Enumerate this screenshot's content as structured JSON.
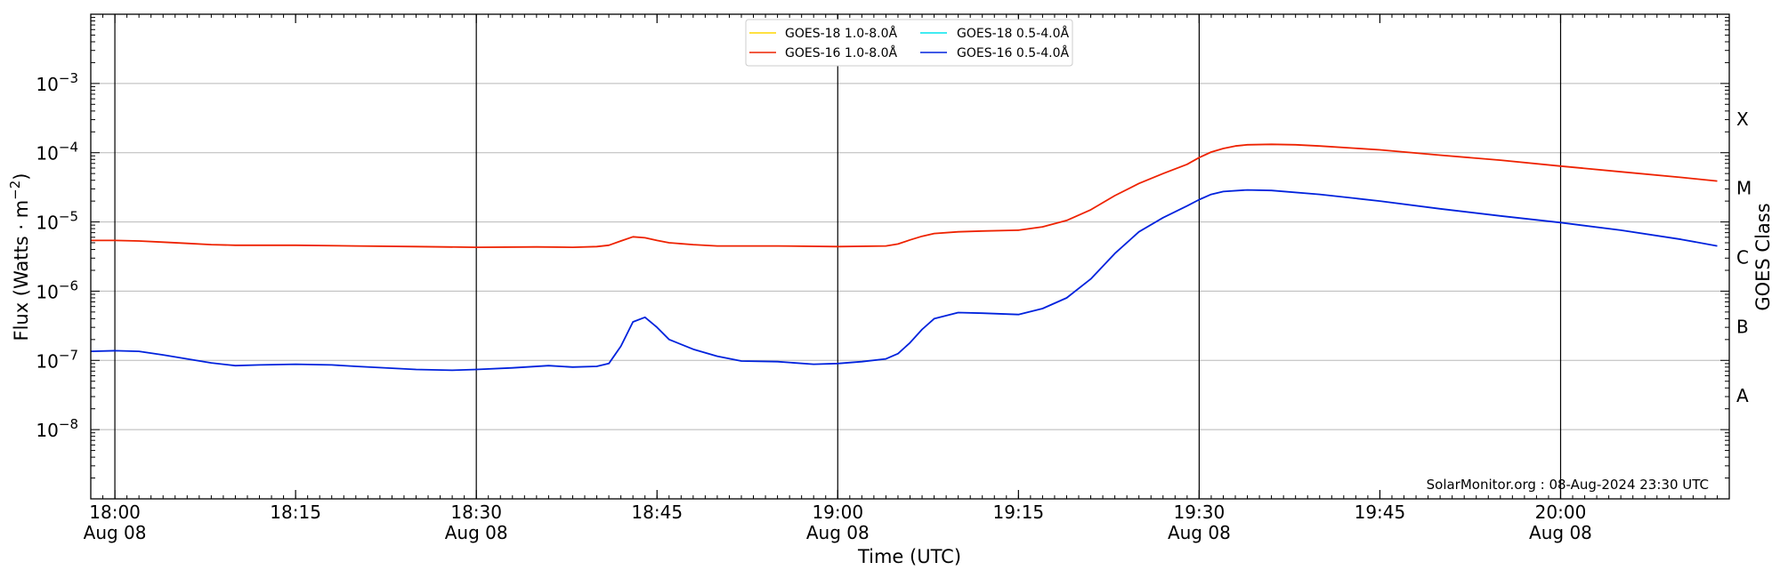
{
  "chart_data": {
    "type": "line",
    "xlabel": "Time (UTC)",
    "ylabel_main": "Flux (Watts · m",
    "ylabel_sup": "−2",
    "ylabel_end": ")",
    "ylabel_right": "GOES Class",
    "credit": "SolarMonitor.org : 08-Aug-2024 23:30 UTC",
    "x_range": [
      "17:58",
      "20:14"
    ],
    "y_log_range": [
      -9,
      -2
    ],
    "log_scale_y": true,
    "grid": "horizontal at decades",
    "legend_placement": "top-center",
    "x_ticks": [
      {
        "t": "18:00",
        "line1": "18:00",
        "line2": "Aug 08"
      },
      {
        "t": "18:15",
        "line1": "18:15",
        "line2": ""
      },
      {
        "t": "18:30",
        "line1": "18:30",
        "line2": "Aug 08"
      },
      {
        "t": "18:45",
        "line1": "18:45",
        "line2": ""
      },
      {
        "t": "19:00",
        "line1": "19:00",
        "line2": "Aug 08"
      },
      {
        "t": "19:15",
        "line1": "19:15",
        "line2": ""
      },
      {
        "t": "19:30",
        "line1": "19:30",
        "line2": "Aug 08"
      },
      {
        "t": "19:45",
        "line1": "19:45",
        "line2": ""
      },
      {
        "t": "20:00",
        "line1": "20:00",
        "line2": "Aug 08"
      }
    ],
    "vertical_lines_at": [
      "18:00",
      "18:30",
      "19:00",
      "19:30",
      "20:00"
    ],
    "y_ticks": [
      {
        "exp": -8,
        "base": "10",
        "sup": "−8"
      },
      {
        "exp": -7,
        "base": "10",
        "sup": "−7"
      },
      {
        "exp": -6,
        "base": "10",
        "sup": "−6"
      },
      {
        "exp": -5,
        "base": "10",
        "sup": "−5"
      },
      {
        "exp": -4,
        "base": "10",
        "sup": "−4"
      },
      {
        "exp": -3,
        "base": "10",
        "sup": "−3"
      }
    ],
    "goes_classes": [
      {
        "label": "A",
        "flux": 3.16e-08
      },
      {
        "label": "B",
        "flux": 3.16e-07
      },
      {
        "label": "C",
        "flux": 3.16e-06
      },
      {
        "label": "M",
        "flux": 3.16e-05
      },
      {
        "label": "X",
        "flux": 0.000316
      }
    ],
    "legend": [
      {
        "label": "GOES-18 1.0-8.0Å",
        "color": "#ffd700"
      },
      {
        "label": "GOES-18 0.5-4.0Å",
        "color": "#00e5ee"
      },
      {
        "label": "GOES-16 1.0-8.0Å",
        "color": "#ee2200"
      },
      {
        "label": "GOES-16 0.5-4.0Å",
        "color": "#0022dd"
      }
    ],
    "series": [
      {
        "name": "GOES-16 1.0-8.0Å",
        "color": "#ee2200",
        "points": [
          [
            "17:58",
            5.4e-06
          ],
          [
            "18:00",
            5.4e-06
          ],
          [
            "18:02",
            5.3e-06
          ],
          [
            "18:04",
            5.1e-06
          ],
          [
            "18:06",
            4.9e-06
          ],
          [
            "18:08",
            4.7e-06
          ],
          [
            "18:10",
            4.6e-06
          ],
          [
            "18:15",
            4.6e-06
          ],
          [
            "18:20",
            4.5e-06
          ],
          [
            "18:25",
            4.4e-06
          ],
          [
            "18:30",
            4.3e-06
          ],
          [
            "18:35",
            4.35e-06
          ],
          [
            "18:38",
            4.3e-06
          ],
          [
            "18:40",
            4.4e-06
          ],
          [
            "18:41",
            4.6e-06
          ],
          [
            "18:42",
            5.3e-06
          ],
          [
            "18:43",
            6.1e-06
          ],
          [
            "18:44",
            5.9e-06
          ],
          [
            "18:45",
            5.4e-06
          ],
          [
            "18:46",
            5e-06
          ],
          [
            "18:48",
            4.7e-06
          ],
          [
            "18:50",
            4.5e-06
          ],
          [
            "18:55",
            4.5e-06
          ],
          [
            "19:00",
            4.4e-06
          ],
          [
            "19:04",
            4.5e-06
          ],
          [
            "19:05",
            4.8e-06
          ],
          [
            "19:06",
            5.5e-06
          ],
          [
            "19:07",
            6.2e-06
          ],
          [
            "19:08",
            6.8e-06
          ],
          [
            "19:10",
            7.2e-06
          ],
          [
            "19:12",
            7.4e-06
          ],
          [
            "19:15",
            7.6e-06
          ],
          [
            "19:17",
            8.5e-06
          ],
          [
            "19:19",
            1.05e-05
          ],
          [
            "19:21",
            1.5e-05
          ],
          [
            "19:23",
            2.4e-05
          ],
          [
            "19:25",
            3.6e-05
          ],
          [
            "19:27",
            5e-05
          ],
          [
            "19:29",
            6.8e-05
          ],
          [
            "19:30",
            8.5e-05
          ],
          [
            "19:31",
            0.000102
          ],
          [
            "19:32",
            0.000115
          ],
          [
            "19:33",
            0.000125
          ],
          [
            "19:34",
            0.00013
          ],
          [
            "19:36",
            0.000132
          ],
          [
            "19:38",
            0.00013
          ],
          [
            "19:40",
            0.000125
          ],
          [
            "19:45",
            0.00011
          ],
          [
            "19:50",
            9.2e-05
          ],
          [
            "19:55",
            7.8e-05
          ],
          [
            "20:00",
            6.4e-05
          ],
          [
            "20:05",
            5.3e-05
          ],
          [
            "20:10",
            4.4e-05
          ],
          [
            "20:13",
            3.9e-05
          ]
        ]
      },
      {
        "name": "GOES-16 0.5-4.0Å",
        "color": "#0022dd",
        "points": [
          [
            "17:58",
            1.35e-07
          ],
          [
            "18:00",
            1.38e-07
          ],
          [
            "18:02",
            1.35e-07
          ],
          [
            "18:04",
            1.2e-07
          ],
          [
            "18:06",
            1.05e-07
          ],
          [
            "18:08",
            9.2e-08
          ],
          [
            "18:10",
            8.4e-08
          ],
          [
            "18:12",
            8.6e-08
          ],
          [
            "18:15",
            8.8e-08
          ],
          [
            "18:18",
            8.6e-08
          ],
          [
            "18:20",
            8.2e-08
          ],
          [
            "18:25",
            7.4e-08
          ],
          [
            "18:28",
            7.2e-08
          ],
          [
            "18:30",
            7.4e-08
          ],
          [
            "18:33",
            7.8e-08
          ],
          [
            "18:36",
            8.4e-08
          ],
          [
            "18:38",
            8e-08
          ],
          [
            "18:40",
            8.2e-08
          ],
          [
            "18:41",
            9e-08
          ],
          [
            "18:42",
            1.6e-07
          ],
          [
            "18:43",
            3.6e-07
          ],
          [
            "18:44",
            4.2e-07
          ],
          [
            "18:45",
            3e-07
          ],
          [
            "18:46",
            2e-07
          ],
          [
            "18:48",
            1.45e-07
          ],
          [
            "18:50",
            1.15e-07
          ],
          [
            "18:52",
            9.8e-08
          ],
          [
            "18:55",
            9.6e-08
          ],
          [
            "18:58",
            8.8e-08
          ],
          [
            "19:00",
            9e-08
          ],
          [
            "19:02",
            9.6e-08
          ],
          [
            "19:04",
            1.05e-07
          ],
          [
            "19:05",
            1.25e-07
          ],
          [
            "19:06",
            1.8e-07
          ],
          [
            "19:07",
            2.8e-07
          ],
          [
            "19:08",
            4e-07
          ],
          [
            "19:10",
            4.9e-07
          ],
          [
            "19:12",
            4.8e-07
          ],
          [
            "19:15",
            4.6e-07
          ],
          [
            "19:17",
            5.6e-07
          ],
          [
            "19:19",
            8e-07
          ],
          [
            "19:21",
            1.5e-06
          ],
          [
            "19:23",
            3.5e-06
          ],
          [
            "19:25",
            7.2e-06
          ],
          [
            "19:27",
            1.15e-05
          ],
          [
            "19:29",
            1.7e-05
          ],
          [
            "19:30",
            2.1e-05
          ],
          [
            "19:31",
            2.5e-05
          ],
          [
            "19:32",
            2.75e-05
          ],
          [
            "19:34",
            2.9e-05
          ],
          [
            "19:36",
            2.85e-05
          ],
          [
            "19:40",
            2.5e-05
          ],
          [
            "19:45",
            2e-05
          ],
          [
            "19:50",
            1.55e-05
          ],
          [
            "19:55",
            1.22e-05
          ],
          [
            "20:00",
            9.8e-06
          ],
          [
            "20:05",
            7.6e-06
          ],
          [
            "20:10",
            5.6e-06
          ],
          [
            "20:13",
            4.5e-06
          ]
        ]
      }
    ]
  }
}
